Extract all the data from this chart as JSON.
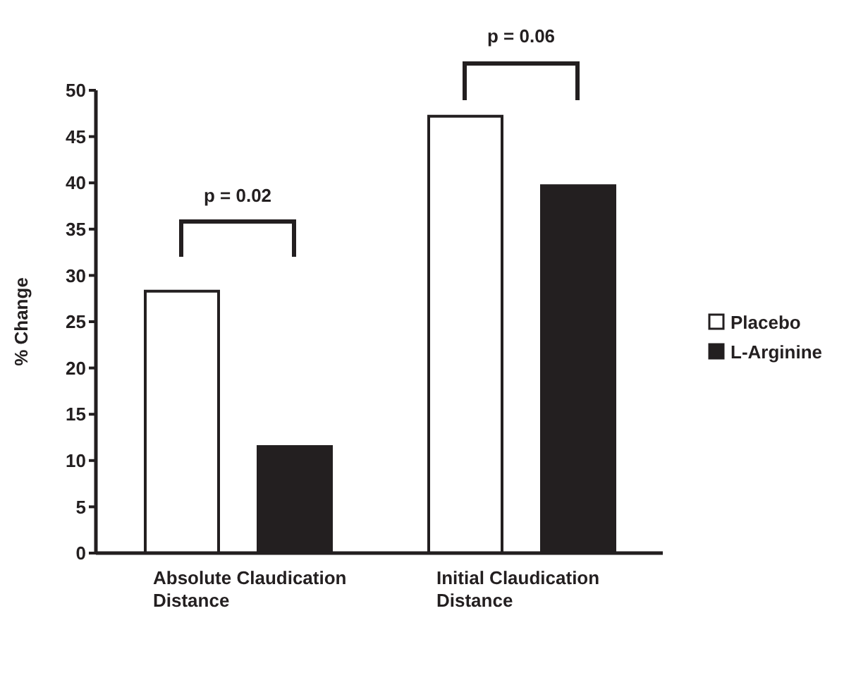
{
  "chart_data": {
    "type": "bar",
    "ylabel": "% Change",
    "categories": [
      "Absolute Claudication Distance",
      "Initial Claudication Distance"
    ],
    "series": [
      {
        "name": "Placebo",
        "color": "#ffffff",
        "values": [
          28.3,
          47.2
        ]
      },
      {
        "name": "L-Arginine",
        "color": "#231f20",
        "values": [
          11.5,
          39.7
        ]
      }
    ],
    "ylim": [
      0,
      50
    ],
    "yticks": [
      0,
      5,
      10,
      15,
      20,
      25,
      30,
      35,
      40,
      45,
      50
    ],
    "legend": "right",
    "annotations": [
      "p = 0.02",
      "p = 0.06"
    ]
  }
}
